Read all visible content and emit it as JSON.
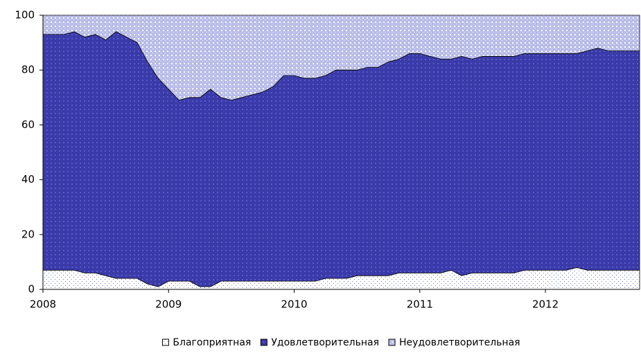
{
  "chart_data": {
    "type": "stacked_area",
    "x": [
      2008,
      2008.083,
      2008.167,
      2008.25,
      2008.333,
      2008.417,
      2008.5,
      2008.583,
      2008.667,
      2008.75,
      2008.833,
      2008.917,
      2009,
      2009.083,
      2009.167,
      2009.25,
      2009.333,
      2009.417,
      2009.5,
      2009.583,
      2009.667,
      2009.75,
      2009.833,
      2009.917,
      2010,
      2010.083,
      2010.167,
      2010.25,
      2010.333,
      2010.417,
      2010.5,
      2010.583,
      2010.667,
      2010.75,
      2010.833,
      2010.917,
      2011,
      2011.083,
      2011.167,
      2011.25,
      2011.333,
      2011.417,
      2011.5,
      2011.583,
      2011.667,
      2011.75,
      2011.833,
      2011.917,
      2012,
      2012.083,
      2012.167,
      2012.25,
      2012.333,
      2012.417,
      2012.5,
      2012.583,
      2012.667,
      2012.75
    ],
    "series": [
      {
        "name": "Благоприятная",
        "color": "#ffffff",
        "values": [
          7,
          7,
          7,
          7,
          6,
          6,
          5,
          4,
          4,
          4,
          2,
          1,
          3,
          3,
          3,
          1,
          1,
          3,
          3,
          3,
          3,
          3,
          3,
          3,
          3,
          3,
          3,
          4,
          4,
          4,
          5,
          5,
          5,
          5,
          6,
          6,
          6,
          6,
          6,
          7,
          5,
          6,
          6,
          6,
          6,
          6,
          7,
          7,
          7,
          7,
          7,
          8,
          7,
          7,
          7,
          7,
          7,
          7
        ]
      },
      {
        "name": "Удовлетворительная",
        "color": "#3a3aa8",
        "values": [
          86,
          86,
          86,
          87,
          86,
          87,
          86,
          90,
          88,
          86,
          81,
          76,
          70,
          66,
          67,
          69,
          72,
          67,
          66,
          67,
          68,
          69,
          71,
          75,
          75,
          74,
          74,
          74,
          76,
          76,
          75,
          76,
          76,
          78,
          78,
          80,
          80,
          79,
          78,
          77,
          80,
          78,
          79,
          79,
          79,
          79,
          79,
          79,
          79,
          79,
          79,
          78,
          80,
          81,
          80,
          80,
          80,
          80
        ]
      },
      {
        "name": "Неудовлетворительная",
        "color": "#b8bce8",
        "values": [
          7,
          7,
          7,
          6,
          8,
          7,
          9,
          6,
          8,
          10,
          17,
          23,
          27,
          31,
          30,
          30,
          27,
          30,
          31,
          30,
          29,
          28,
          26,
          22,
          22,
          23,
          23,
          22,
          20,
          20,
          20,
          19,
          19,
          17,
          16,
          14,
          14,
          15,
          16,
          16,
          15,
          16,
          15,
          15,
          15,
          15,
          14,
          14,
          14,
          14,
          14,
          14,
          13,
          12,
          13,
          13,
          13,
          13
        ]
      }
    ],
    "xlim": [
      2008,
      2012.75
    ],
    "xticks": [
      2008,
      2009,
      2010,
      2011,
      2012
    ],
    "ylim": [
      0,
      100
    ],
    "yticks": [
      0,
      20,
      40,
      60,
      80,
      100
    ]
  }
}
